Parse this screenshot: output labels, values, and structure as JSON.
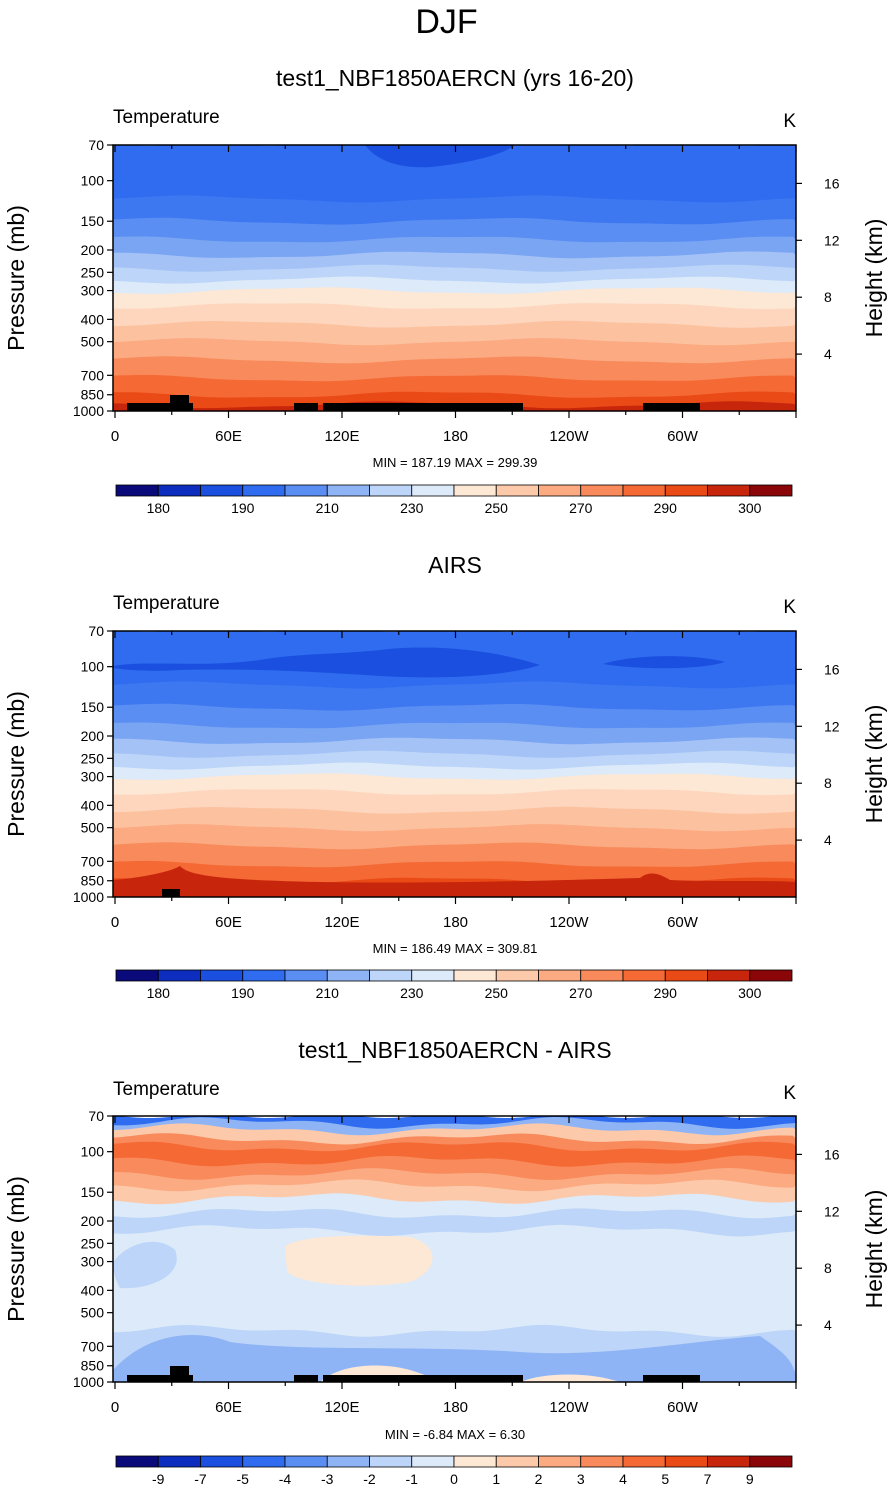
{
  "figure": {
    "season_title": "DJF"
  },
  "chart_data": [
    {
      "type": "contour",
      "title": "test1_NBF1850AERCN (yrs 16-20)",
      "left_string": "Temperature",
      "right_string": "K",
      "ylabel": "Pressure (mb)",
      "ylabel_right": "Height (km)",
      "x_ticks": [
        "0",
        "60E",
        "120E",
        "180",
        "120W",
        "60W"
      ],
      "y_ticks": [
        "70",
        "100",
        "150",
        "200",
        "250",
        "300",
        "400",
        "500",
        "700",
        "850",
        "1000"
      ],
      "height_ticks": [
        "16",
        "12",
        "8",
        "4"
      ],
      "stats": "MIN = 187.19  MAX = 299.39",
      "colorbar_labels": [
        "180",
        "190",
        "210",
        "230",
        "250",
        "270",
        "290",
        "300"
      ],
      "colorbar_colors": [
        "#0a0a7a",
        "#0d2dbe",
        "#1b4fe0",
        "#2f6cf0",
        "#5b8ef2",
        "#8fb4f5",
        "#bcd5f8",
        "#dceaf9",
        "#fde7d5",
        "#fccaaa",
        "#fbaa82",
        "#f88a5b",
        "#f56935",
        "#ea4a16",
        "#c8260c",
        "#8a0608"
      ],
      "bands": [
        {
          "level": "70",
          "color": "#2f6cf0"
        },
        {
          "level": "100",
          "color": "#2f6cf0"
        },
        {
          "level": "120",
          "color": "#3d78f1"
        },
        {
          "level": "150",
          "color": "#5b8ef2"
        },
        {
          "level": "180",
          "color": "#7aa5f3"
        },
        {
          "level": "210",
          "color": "#a4c2f6"
        },
        {
          "level": "240",
          "color": "#bcd5f8"
        },
        {
          "level": "270",
          "color": "#dceaf9"
        },
        {
          "level": "300",
          "color": "#fde7d5"
        },
        {
          "level": "350",
          "color": "#fdd6bd"
        },
        {
          "level": "420",
          "color": "#fcc2a0"
        },
        {
          "level": "500",
          "color": "#fbaa82"
        },
        {
          "level": "600",
          "color": "#f88a5b"
        },
        {
          "level": "720",
          "color": "#f56935"
        },
        {
          "level": "850",
          "color": "#ea4a16"
        },
        {
          "level": "940",
          "color": "#c8260c"
        }
      ]
    },
    {
      "type": "contour",
      "title": "AIRS",
      "left_string": "Temperature",
      "right_string": "K",
      "ylabel": "Pressure (mb)",
      "ylabel_right": "Height (km)",
      "x_ticks": [
        "0",
        "60E",
        "120E",
        "180",
        "120W",
        "60W"
      ],
      "y_ticks": [
        "70",
        "100",
        "150",
        "200",
        "250",
        "300",
        "400",
        "500",
        "700",
        "850",
        "1000"
      ],
      "height_ticks": [
        "16",
        "12",
        "8",
        "4"
      ],
      "stats": "MIN = 186.49  MAX = 309.81",
      "colorbar_labels": [
        "180",
        "190",
        "210",
        "230",
        "250",
        "270",
        "290",
        "300"
      ],
      "colorbar_colors": [
        "#0a0a7a",
        "#0d2dbe",
        "#1b4fe0",
        "#2f6cf0",
        "#5b8ef2",
        "#8fb4f5",
        "#bcd5f8",
        "#dceaf9",
        "#fde7d5",
        "#fccaaa",
        "#fbaa82",
        "#f88a5b",
        "#f56935",
        "#ea4a16",
        "#c8260c",
        "#8a0608"
      ],
      "bands": [
        {
          "level": "70",
          "color": "#2f6cf0"
        },
        {
          "level": "100",
          "color": "#2f6cf0"
        },
        {
          "level": "120",
          "color": "#3d78f1"
        },
        {
          "level": "150",
          "color": "#5b8ef2"
        },
        {
          "level": "180",
          "color": "#7aa5f3"
        },
        {
          "level": "210",
          "color": "#a4c2f6"
        },
        {
          "level": "240",
          "color": "#bcd5f8"
        },
        {
          "level": "270",
          "color": "#dceaf9"
        },
        {
          "level": "300",
          "color": "#fde7d5"
        },
        {
          "level": "350",
          "color": "#fdd6bd"
        },
        {
          "level": "420",
          "color": "#fcc2a0"
        },
        {
          "level": "500",
          "color": "#fbaa82"
        },
        {
          "level": "600",
          "color": "#f88a5b"
        },
        {
          "level": "720",
          "color": "#f56935"
        },
        {
          "level": "850",
          "color": "#ea4a16"
        },
        {
          "level": "940",
          "color": "#c8260c"
        }
      ]
    },
    {
      "type": "contour",
      "title": "test1_NBF1850AERCN - AIRS",
      "left_string": "Temperature",
      "right_string": "K",
      "ylabel": "Pressure (mb)",
      "ylabel_right": "Height (km)",
      "x_ticks": [
        "0",
        "60E",
        "120E",
        "180",
        "120W",
        "60W"
      ],
      "y_ticks": [
        "70",
        "100",
        "150",
        "200",
        "250",
        "300",
        "400",
        "500",
        "700",
        "850",
        "1000"
      ],
      "height_ticks": [
        "16",
        "12",
        "8",
        "4"
      ],
      "stats": "MIN =  -6.84  MAX =   6.30",
      "colorbar_labels": [
        "-9",
        "-7",
        "-5",
        "-4",
        "-3",
        "-2",
        "-1",
        "0",
        "1",
        "2",
        "3",
        "4",
        "5",
        "7",
        "9"
      ],
      "colorbar_colors": [
        "#0a0a7a",
        "#0d2dbe",
        "#1b4fe0",
        "#2f6cf0",
        "#5b8ef2",
        "#8fb4f5",
        "#bcd5f8",
        "#dceaf9",
        "#fde7d5",
        "#fccaaa",
        "#fbaa82",
        "#f88a5b",
        "#f56935",
        "#ea4a16",
        "#c8260c",
        "#8a0608"
      ],
      "bands": [
        {
          "level": "70",
          "color": "#2f6cf0"
        },
        {
          "level": "75",
          "color": "#8fb4f5"
        },
        {
          "level": "80",
          "color": "#fccaaa"
        },
        {
          "level": "88",
          "color": "#f88a5b"
        },
        {
          "level": "95",
          "color": "#f56935"
        },
        {
          "level": "110",
          "color": "#f88a5b"
        },
        {
          "level": "125",
          "color": "#fbaa82"
        },
        {
          "level": "140",
          "color": "#fccaaa"
        },
        {
          "level": "160",
          "color": "#dceaf9"
        },
        {
          "level": "185",
          "color": "#bcd5f8"
        },
        {
          "level": "220",
          "color": "#dceaf9"
        },
        {
          "level": "600",
          "color": "#bcd5f8"
        },
        {
          "level": "900",
          "color": "#a4c2f6"
        }
      ]
    }
  ]
}
